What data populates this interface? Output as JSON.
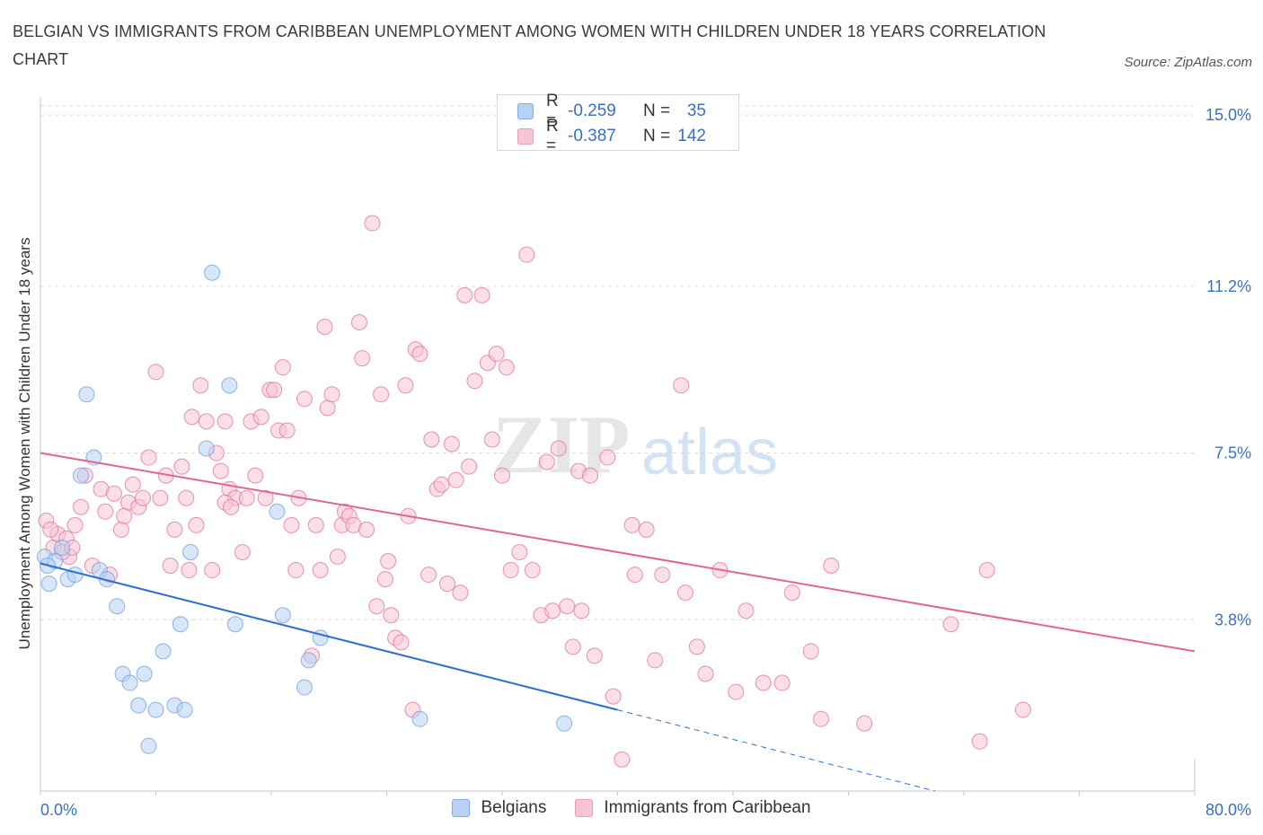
{
  "title": "BELGIAN VS IMMIGRANTS FROM CARIBBEAN UNEMPLOYMENT AMONG WOMEN WITH CHILDREN UNDER 18 YEARS CORRELATION CHART",
  "source": "Source: ZipAtlas.com",
  "watermark": {
    "zip": "ZIP",
    "atlas": "atlas"
  },
  "legend": {
    "rows": [
      {
        "r_label": "R =",
        "r_value": "-0.259",
        "n_label": "N =",
        "n_value": "35",
        "fill": "#b7d1f3",
        "stroke": "#7eaae6"
      },
      {
        "r_label": "R =",
        "r_value": "-0.387",
        "n_label": "N =",
        "n_value": "142",
        "fill": "#f7c4d3",
        "stroke": "#eb9bb4"
      }
    ]
  },
  "bottom_legend": [
    {
      "label": "Belgians",
      "fill": "#b7d1f3",
      "stroke": "#7eaae6"
    },
    {
      "label": "Immigrants from Caribbean",
      "fill": "#f7c4d3",
      "stroke": "#eb9bb4"
    }
  ],
  "chart_data": {
    "type": "scatter",
    "title": "BELGIAN VS IMMIGRANTS FROM CARIBBEAN UNEMPLOYMENT AMONG WOMEN WITH CHILDREN UNDER 18 YEARS CORRELATION CHART",
    "xlabel": "",
    "ylabel": "Unemployment Among Women with Children Under 18 years",
    "xlim": [
      0,
      80
    ],
    "ylim": [
      0,
      15.4
    ],
    "x_tick_labels": [
      "0.0%",
      "80.0%"
    ],
    "y_ticks": [
      {
        "value": 3.8,
        "label": "3.8%"
      },
      {
        "value": 7.5,
        "label": "7.5%"
      },
      {
        "value": 11.2,
        "label": "11.2%"
      },
      {
        "value": 15.0,
        "label": "15.0%"
      }
    ],
    "grid": true,
    "legend_position": "top-center",
    "series": [
      {
        "name": "Belgians",
        "color": "#6b9ee0",
        "fill": "#b7d1f3",
        "trend": {
          "x0": 0,
          "y0": 5.05,
          "x1": 40,
          "y1": 1.8,
          "x_dash_end": 62,
          "y_dash_end": 0
        },
        "points": [
          [
            0.3,
            5.2
          ],
          [
            0.6,
            4.6
          ],
          [
            1.0,
            5.1
          ],
          [
            1.5,
            5.4
          ],
          [
            1.9,
            4.7
          ],
          [
            2.4,
            4.8
          ],
          [
            2.8,
            7.0
          ],
          [
            3.2,
            8.8
          ],
          [
            3.7,
            7.4
          ],
          [
            4.1,
            4.9
          ],
          [
            4.6,
            4.7
          ],
          [
            5.3,
            4.1
          ],
          [
            5.7,
            2.6
          ],
          [
            6.2,
            2.4
          ],
          [
            6.8,
            1.9
          ],
          [
            7.2,
            2.6
          ],
          [
            7.5,
            1.0
          ],
          [
            8.0,
            1.8
          ],
          [
            8.5,
            3.1
          ],
          [
            9.3,
            1.9
          ],
          [
            9.7,
            3.7
          ],
          [
            10.0,
            1.8
          ],
          [
            10.4,
            5.3
          ],
          [
            11.5,
            7.6
          ],
          [
            11.9,
            11.5
          ],
          [
            13.1,
            9.0
          ],
          [
            13.5,
            3.7
          ],
          [
            16.4,
            6.2
          ],
          [
            16.8,
            3.9
          ],
          [
            18.6,
            2.9
          ],
          [
            19.4,
            3.4
          ],
          [
            18.3,
            2.3
          ],
          [
            26.3,
            1.6
          ],
          [
            36.3,
            1.5
          ],
          [
            0.5,
            5.0
          ]
        ]
      },
      {
        "name": "Immigrants from Caribbean",
        "color": "#e07096",
        "fill": "#f7c4d3",
        "trend": {
          "x0": 0,
          "y0": 7.5,
          "x1": 80,
          "y1": 3.1
        },
        "points": [
          [
            0.4,
            6.0
          ],
          [
            0.9,
            5.4
          ],
          [
            1.2,
            5.7
          ],
          [
            1.8,
            5.6
          ],
          [
            2.0,
            5.2
          ],
          [
            2.4,
            5.9
          ],
          [
            2.8,
            6.3
          ],
          [
            3.1,
            7.0
          ],
          [
            3.6,
            5.0
          ],
          [
            4.2,
            6.7
          ],
          [
            4.5,
            6.2
          ],
          [
            4.8,
            4.8
          ],
          [
            5.1,
            6.6
          ],
          [
            5.6,
            5.8
          ],
          [
            6.1,
            6.4
          ],
          [
            6.4,
            6.8
          ],
          [
            6.8,
            6.3
          ],
          [
            7.1,
            6.5
          ],
          [
            7.5,
            7.4
          ],
          [
            8.0,
            9.3
          ],
          [
            8.3,
            6.5
          ],
          [
            8.7,
            7.0
          ],
          [
            9.0,
            5.0
          ],
          [
            9.3,
            5.8
          ],
          [
            9.8,
            7.2
          ],
          [
            10.1,
            6.5
          ],
          [
            10.3,
            4.9
          ],
          [
            10.5,
            8.3
          ],
          [
            10.8,
            5.9
          ],
          [
            11.1,
            9.0
          ],
          [
            11.5,
            8.2
          ],
          [
            11.9,
            4.9
          ],
          [
            12.2,
            7.5
          ],
          [
            12.5,
            7.1
          ],
          [
            12.8,
            8.2
          ],
          [
            13.1,
            6.7
          ],
          [
            13.5,
            6.5
          ],
          [
            14.0,
            5.3
          ],
          [
            14.3,
            6.5
          ],
          [
            14.6,
            8.2
          ],
          [
            14.9,
            7.0
          ],
          [
            15.3,
            8.3
          ],
          [
            15.6,
            6.5
          ],
          [
            15.9,
            8.9
          ],
          [
            16.2,
            8.9
          ],
          [
            16.5,
            8.0
          ],
          [
            16.8,
            9.4
          ],
          [
            17.1,
            8.0
          ],
          [
            17.4,
            5.9
          ],
          [
            17.7,
            4.9
          ],
          [
            17.9,
            6.5
          ],
          [
            18.3,
            8.7
          ],
          [
            18.8,
            3.0
          ],
          [
            19.1,
            5.9
          ],
          [
            19.4,
            4.9
          ],
          [
            19.7,
            10.3
          ],
          [
            19.9,
            8.5
          ],
          [
            20.2,
            8.8
          ],
          [
            20.6,
            5.2
          ],
          [
            20.9,
            5.9
          ],
          [
            21.1,
            6.2
          ],
          [
            21.4,
            6.1
          ],
          [
            21.7,
            5.9
          ],
          [
            22.1,
            10.4
          ],
          [
            22.3,
            9.6
          ],
          [
            22.6,
            5.8
          ],
          [
            23.0,
            12.6
          ],
          [
            23.3,
            4.1
          ],
          [
            23.6,
            8.8
          ],
          [
            23.9,
            4.7
          ],
          [
            24.1,
            5.1
          ],
          [
            24.3,
            3.9
          ],
          [
            24.6,
            3.4
          ],
          [
            25.0,
            3.3
          ],
          [
            25.3,
            9.0
          ],
          [
            25.5,
            6.1
          ],
          [
            25.8,
            1.8
          ],
          [
            26.0,
            9.8
          ],
          [
            26.3,
            9.7
          ],
          [
            26.9,
            4.8
          ],
          [
            27.1,
            7.8
          ],
          [
            27.5,
            6.7
          ],
          [
            27.8,
            6.8
          ],
          [
            28.2,
            4.6
          ],
          [
            28.5,
            7.7
          ],
          [
            28.8,
            6.9
          ],
          [
            29.1,
            4.4
          ],
          [
            29.4,
            11.0
          ],
          [
            29.7,
            7.2
          ],
          [
            30.1,
            9.1
          ],
          [
            30.6,
            11.0
          ],
          [
            31.0,
            9.5
          ],
          [
            31.3,
            7.8
          ],
          [
            31.6,
            9.7
          ],
          [
            32.0,
            7.0
          ],
          [
            32.3,
            9.4
          ],
          [
            32.6,
            4.9
          ],
          [
            33.2,
            5.3
          ],
          [
            33.7,
            11.9
          ],
          [
            34.1,
            4.9
          ],
          [
            34.7,
            3.9
          ],
          [
            35.1,
            7.3
          ],
          [
            35.5,
            4.0
          ],
          [
            35.9,
            7.6
          ],
          [
            36.5,
            4.1
          ],
          [
            36.9,
            3.2
          ],
          [
            37.3,
            7.1
          ],
          [
            37.5,
            4.0
          ],
          [
            38.1,
            7.0
          ],
          [
            38.4,
            3.0
          ],
          [
            39.3,
            7.4
          ],
          [
            39.7,
            2.1
          ],
          [
            40.3,
            0.7
          ],
          [
            41.0,
            5.9
          ],
          [
            41.2,
            4.8
          ],
          [
            42.0,
            5.8
          ],
          [
            42.6,
            2.9
          ],
          [
            43.1,
            4.8
          ],
          [
            44.4,
            9.0
          ],
          [
            44.7,
            4.4
          ],
          [
            45.5,
            3.2
          ],
          [
            46.1,
            2.6
          ],
          [
            47.1,
            4.9
          ],
          [
            48.2,
            2.2
          ],
          [
            48.9,
            4.0
          ],
          [
            50.1,
            2.4
          ],
          [
            51.4,
            2.4
          ],
          [
            52.1,
            4.4
          ],
          [
            53.4,
            3.1
          ],
          [
            54.1,
            1.6
          ],
          [
            54.8,
            5.0
          ],
          [
            57.1,
            1.5
          ],
          [
            63.1,
            3.7
          ],
          [
            65.1,
            1.1
          ],
          [
            65.6,
            4.9
          ],
          [
            68.1,
            1.8
          ],
          [
            0.7,
            5.8
          ],
          [
            1.5,
            5.3
          ],
          [
            2.2,
            5.4
          ],
          [
            5.8,
            6.1
          ],
          [
            12.8,
            6.4
          ],
          [
            13.2,
            6.3
          ]
        ]
      }
    ]
  }
}
